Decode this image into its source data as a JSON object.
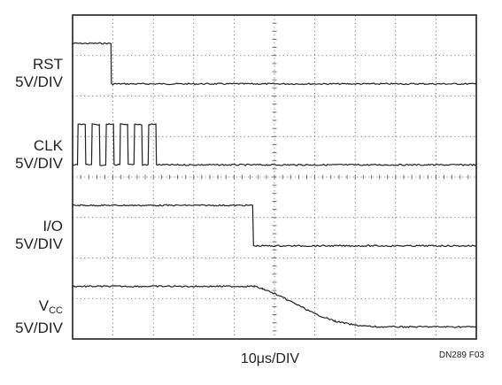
{
  "chart_data": {
    "type": "line",
    "title": "",
    "xlabel": "10μs/DIV",
    "figure_id": "DN289 F03",
    "grid": true,
    "x_divisions": 10,
    "y_divisions": 8,
    "x_units": "μs",
    "x_scale_per_div": 10,
    "x_range": [
      0,
      100
    ],
    "channels": [
      {
        "name": "RST",
        "scale": "5V/DIV",
        "color": "#231f20",
        "baseline_div": 6.3,
        "points": [
          [
            0,
            5
          ],
          [
            9.5,
            5
          ],
          [
            9.6,
            0
          ],
          [
            100,
            0
          ]
        ]
      },
      {
        "name": "CLK",
        "scale": "5V/DIV",
        "color": "#231f20",
        "baseline_div": 4.3,
        "pulse_train": {
          "start": 1.2,
          "end": 19.2,
          "period": 3.5,
          "high_fraction": 0.55,
          "high": 5,
          "low": 0
        }
      },
      {
        "name": "I/O",
        "scale": "5V/DIV",
        "color": "#231f20",
        "baseline_div": 2.3,
        "points": [
          [
            0,
            5
          ],
          [
            44.6,
            5
          ],
          [
            44.8,
            0
          ],
          [
            100,
            0
          ]
        ]
      },
      {
        "name": "V",
        "subscript": "CC",
        "scale": "5V/DIV",
        "color": "#231f20",
        "baseline_div": 0.3,
        "points": [
          [
            0,
            5
          ],
          [
            45,
            5
          ],
          [
            47,
            4.7
          ],
          [
            50,
            4.1
          ],
          [
            55,
            2.9
          ],
          [
            60,
            1.6
          ],
          [
            65,
            0.7
          ],
          [
            70,
            0.2
          ],
          [
            75,
            0
          ],
          [
            100,
            0
          ]
        ]
      }
    ]
  }
}
